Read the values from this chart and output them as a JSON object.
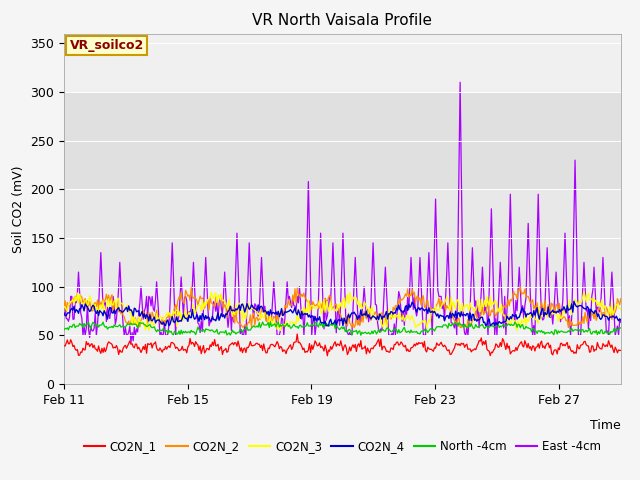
{
  "title": "VR North Vaisala Profile",
  "ylabel": "Soil CO2 (mV)",
  "xlabel": "Time",
  "annotation": "VR_soilco2",
  "ylim": [
    0,
    360
  ],
  "yticks": [
    0,
    50,
    100,
    150,
    200,
    250,
    300,
    350
  ],
  "x_tick_labels": [
    "Feb 11",
    "Feb 15",
    "Feb 19",
    "Feb 23",
    "Feb 27"
  ],
  "fig_bg_color": "#f5f5f5",
  "plot_bg_color": "#f0f0f0",
  "band1_color": "#e8e8e8",
  "band2_color": "#e0e0e0",
  "series_colors": {
    "CO2N_1": "#ff0000",
    "CO2N_2": "#ff8c00",
    "CO2N_3": "#ffff00",
    "CO2N_4": "#0000cc",
    "North_4cm": "#00cc00",
    "East_4cm": "#aa00ff"
  },
  "num_points": 500,
  "seed": 42
}
